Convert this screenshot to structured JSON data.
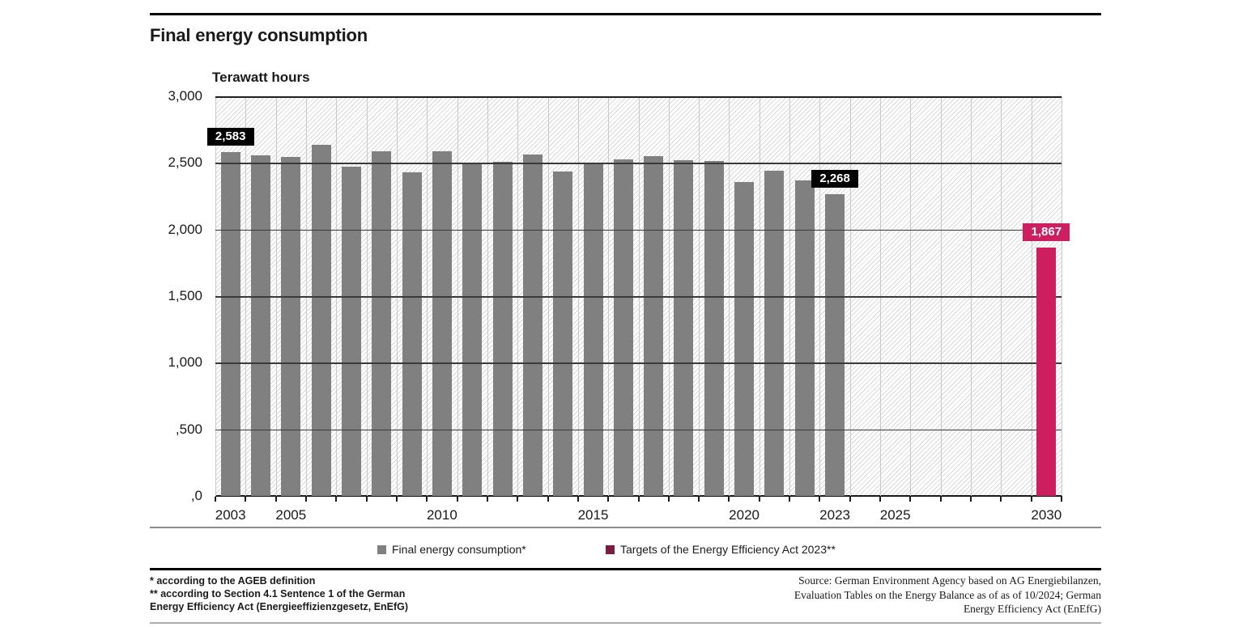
{
  "chart_data": {
    "type": "bar",
    "title": "Final energy consumption",
    "unit_label": "Terawatt hours",
    "ylim": [
      0,
      3000
    ],
    "y_step": 500,
    "y_tick_labels": [
      "3,000",
      "2,500",
      "2,000",
      "1,500",
      "1,000",
      ",500",
      ",0"
    ],
    "x_range": {
      "start": 2003,
      "end": 2030
    },
    "x_tick_label_years": [
      2003,
      2005,
      2010,
      2015,
      2020,
      2023,
      2025,
      2030
    ],
    "x_tick_label_texts": [
      "2003",
      "2005",
      "2010",
      "2015",
      "2020",
      "2023",
      "2025",
      "2030"
    ],
    "grid": "horizontal gridlines every 500 TWh, hatched plot background, vertical year separators",
    "legend_position": "bottom",
    "series": [
      {
        "name": "Final energy consumption*",
        "color": "#808080",
        "years": [
          2003,
          2004,
          2005,
          2006,
          2007,
          2008,
          2009,
          2010,
          2011,
          2012,
          2013,
          2014,
          2015,
          2016,
          2017,
          2018,
          2019,
          2020,
          2021,
          2022,
          2023
        ],
        "values": [
          2583,
          2555,
          2545,
          2635,
          2470,
          2590,
          2430,
          2590,
          2495,
          2510,
          2565,
          2435,
          2495,
          2525,
          2548,
          2518,
          2514,
          2355,
          2443,
          2370,
          2268
        ]
      },
      {
        "name": "Targets of the Energy Efficiency Act 2023**",
        "color": "#CD1E5F",
        "years": [
          2030
        ],
        "values": [
          1867
        ]
      }
    ],
    "data_labels": [
      {
        "year": 2003,
        "value": 2583,
        "text": "2,583",
        "bg": "#000000"
      },
      {
        "year": 2023,
        "value": 2268,
        "text": "2,268",
        "bg": "#000000"
      },
      {
        "year": 2030,
        "value": 1867,
        "text": "1,867",
        "bg": "#CD1E5F"
      }
    ]
  },
  "legend": {
    "items": [
      {
        "label": "Final energy consumption*",
        "swatch_color": "#808080"
      },
      {
        "label": "Targets of the Energy Efficiency Act 2023**",
        "swatch_color": "#7E1B42"
      }
    ]
  },
  "footnotes": {
    "lines": [
      "* according to the AGEB definition",
      "** according to Section 4.1 Sentence 1 of the German",
      "Energy Efficiency Act (Energieeffizienzgesetz, EnEfG)"
    ]
  },
  "source": {
    "lines": [
      "Source: German Environment Agency based on AG Energiebilanzen,",
      "Evaluation Tables on the Energy Balance as of as of 10/2024; German",
      "Energy Efficiency Act (EnEfG)"
    ]
  },
  "colors": {
    "bar_gray": "#808080",
    "bar_pink": "#CD1E5F",
    "legend_target_swatch": "#7E1B42",
    "label_black_bg": "#000000",
    "gridline": "#3a3a3a"
  }
}
